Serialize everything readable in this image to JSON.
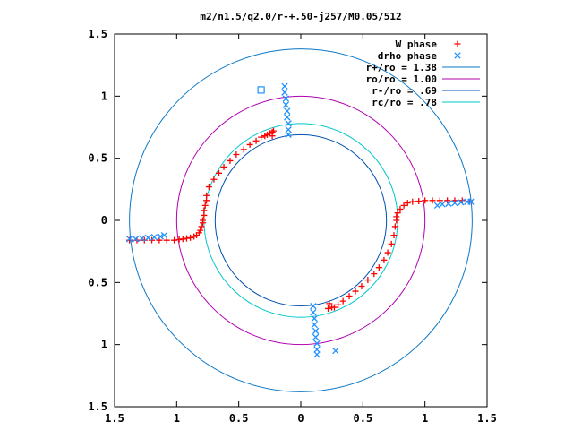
{
  "chart_data": {
    "type": "scatter",
    "title": "m2/n1.5/q2.0/r-+.50-j257/M0.05/512",
    "xlabel": "",
    "ylabel": "",
    "xlim": [
      -1.5,
      1.5
    ],
    "ylim": [
      -1.5,
      1.5
    ],
    "x_tick_values": [
      -1.5,
      -1,
      -0.5,
      0,
      0.5,
      1,
      1.5
    ],
    "x_tick_labels": [
      "1.5",
      "1",
      "0.5",
      "0",
      "0.5",
      "1",
      "1.5"
    ],
    "y_tick_values": [
      1.5,
      1,
      0.5,
      0,
      -0.5,
      -1,
      -1.5
    ],
    "y_tick_labels": [
      "1.5",
      "1",
      "0.5",
      "0",
      "0.5",
      "1",
      "1.5"
    ],
    "grid": false,
    "legend_position": "top-right",
    "colors": {
      "w_phase": "#ff0000",
      "drho_phase": "#1e90ff",
      "r_plus": "#0a78c8",
      "r_o": "#b000b0",
      "r_minus": "#0050b0",
      "r_c": "#00c8c8"
    },
    "circles": [
      {
        "name": "r+/ro = 1.38",
        "radius": 1.38,
        "color_key": "r_plus"
      },
      {
        "name": "ro/ro = 1.00",
        "radius": 1.0,
        "color_key": "r_o"
      },
      {
        "name": "r-/ro = .69",
        "radius": 0.69,
        "color_key": "r_minus"
      },
      {
        "name": "rc/ro = .78",
        "radius": 0.78,
        "color_key": "r_c"
      }
    ],
    "series": [
      {
        "name": "W phase",
        "marker": "plus",
        "color_key": "w_phase",
        "points": [
          [
            -1.38,
            -0.16
          ],
          [
            -1.32,
            -0.16
          ],
          [
            -1.26,
            -0.16
          ],
          [
            -1.2,
            -0.16
          ],
          [
            -1.14,
            -0.16
          ],
          [
            -1.08,
            -0.16
          ],
          [
            -1.02,
            -0.16
          ],
          [
            -0.98,
            -0.155
          ],
          [
            -0.95,
            -0.15
          ],
          [
            -0.92,
            -0.145
          ],
          [
            -0.89,
            -0.14
          ],
          [
            -0.86,
            -0.13
          ],
          [
            -0.84,
            -0.12
          ],
          [
            -0.82,
            -0.1
          ],
          [
            -0.81,
            -0.08
          ],
          [
            -0.8,
            -0.05
          ],
          [
            -0.79,
            -0.02
          ],
          [
            -0.79,
            0.0
          ],
          [
            -0.78,
            0.04
          ],
          [
            -0.78,
            0.08
          ],
          [
            -0.77,
            0.12
          ],
          [
            -0.76,
            0.16
          ],
          [
            -0.76,
            0.2
          ],
          [
            -0.74,
            0.27
          ],
          [
            -0.7,
            0.33
          ],
          [
            -0.66,
            0.38
          ],
          [
            -0.62,
            0.43
          ],
          [
            -0.57,
            0.48
          ],
          [
            -0.52,
            0.53
          ],
          [
            -0.46,
            0.57
          ],
          [
            -0.41,
            0.61
          ],
          [
            -0.36,
            0.64
          ],
          [
            -0.32,
            0.67
          ],
          [
            -0.29,
            0.68
          ],
          [
            -0.27,
            0.69
          ],
          [
            -0.25,
            0.7
          ],
          [
            -0.23,
            0.71
          ],
          [
            -0.22,
            0.72
          ],
          [
            -0.23,
            0.68
          ],
          [
            0.22,
            -0.71
          ],
          [
            0.23,
            -0.67
          ],
          [
            0.25,
            -0.7
          ],
          [
            0.27,
            -0.7
          ],
          [
            0.3,
            -0.68
          ],
          [
            0.34,
            -0.65
          ],
          [
            0.39,
            -0.61
          ],
          [
            0.44,
            -0.57
          ],
          [
            0.49,
            -0.53
          ],
          [
            0.54,
            -0.48
          ],
          [
            0.59,
            -0.43
          ],
          [
            0.63,
            -0.38
          ],
          [
            0.67,
            -0.32
          ],
          [
            0.7,
            -0.26
          ],
          [
            0.73,
            -0.19
          ],
          [
            0.75,
            -0.12
          ],
          [
            0.76,
            -0.05
          ],
          [
            0.77,
            0.0
          ],
          [
            0.77,
            0.03
          ],
          [
            0.78,
            0.06
          ],
          [
            0.8,
            0.09
          ],
          [
            0.83,
            0.12
          ],
          [
            0.86,
            0.14
          ],
          [
            0.9,
            0.15
          ],
          [
            0.95,
            0.155
          ],
          [
            1.0,
            0.16
          ],
          [
            1.06,
            0.16
          ],
          [
            1.12,
            0.16
          ],
          [
            1.18,
            0.16
          ],
          [
            1.24,
            0.16
          ],
          [
            1.3,
            0.16
          ],
          [
            1.36,
            0.15
          ]
        ]
      },
      {
        "name": "drho phase",
        "marker": "cross",
        "color_key": "drho_phase",
        "points": [
          [
            -1.38,
            -0.15
          ],
          [
            -1.33,
            -0.15
          ],
          [
            -1.28,
            -0.145
          ],
          [
            -1.23,
            -0.14
          ],
          [
            -1.18,
            -0.135
          ],
          [
            -1.13,
            -0.13
          ],
          [
            -1.1,
            -0.12
          ],
          [
            -0.13,
            1.08
          ],
          [
            -0.13,
            1.03
          ],
          [
            -0.12,
            0.98
          ],
          [
            -0.12,
            0.93
          ],
          [
            -0.11,
            0.88
          ],
          [
            -0.11,
            0.83
          ],
          [
            -0.1,
            0.78
          ],
          [
            -0.1,
            0.73
          ],
          [
            -0.1,
            0.69
          ],
          [
            0.1,
            -0.69
          ],
          [
            0.1,
            -0.74
          ],
          [
            0.11,
            -0.79
          ],
          [
            0.11,
            -0.84
          ],
          [
            0.12,
            -0.89
          ],
          [
            0.12,
            -0.94
          ],
          [
            0.13,
            -0.99
          ],
          [
            0.13,
            -1.04
          ],
          [
            0.13,
            -1.08
          ],
          [
            1.1,
            0.12
          ],
          [
            1.14,
            0.13
          ],
          [
            1.19,
            0.135
          ],
          [
            1.24,
            0.14
          ],
          [
            1.29,
            0.145
          ],
          [
            1.34,
            0.15
          ],
          [
            1.37,
            0.15
          ],
          [
            0.28,
            -1.05
          ]
        ]
      }
    ],
    "annotations": [
      {
        "marker": "square",
        "x": -0.32,
        "y": 1.05,
        "color_key": "drho_phase"
      }
    ]
  }
}
